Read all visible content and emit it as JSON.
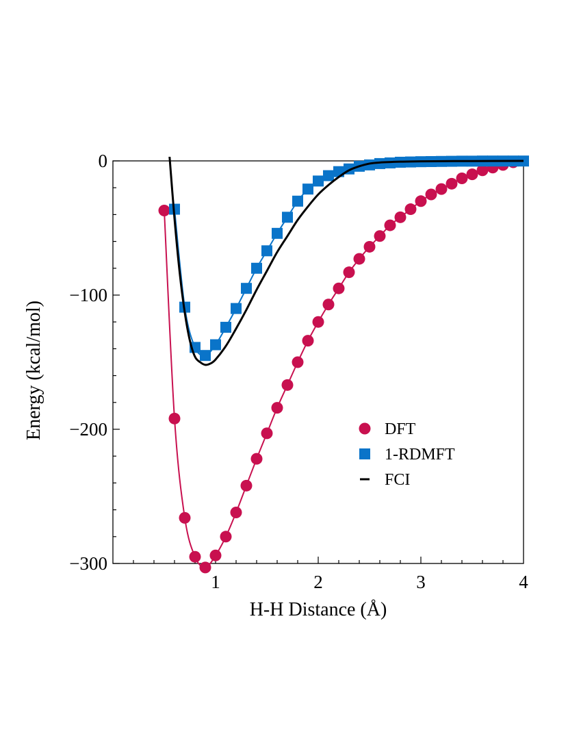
{
  "chart_data": {
    "type": "line",
    "title": "",
    "xlabel": "H-H Distance (Å)",
    "ylabel": "Energy (kcal/mol)",
    "xlim": [
      0,
      4
    ],
    "ylim": [
      -300,
      0
    ],
    "x_ticks": [
      1,
      2,
      3,
      4
    ],
    "y_ticks": [
      0,
      -100,
      -200,
      -300
    ],
    "x_tick_labels": [
      "1",
      "2",
      "3",
      "4"
    ],
    "y_tick_labels": [
      "0",
      "-100",
      "-200",
      "-300"
    ],
    "legend_position": "center-right",
    "series": [
      {
        "name": "DFT",
        "style": "markers+line",
        "marker": "circle",
        "color": "#c8104f",
        "x": [
          0.5,
          0.6,
          0.7,
          0.8,
          0.9,
          1.0,
          1.1,
          1.2,
          1.3,
          1.4,
          1.5,
          1.6,
          1.7,
          1.8,
          1.9,
          2.0,
          2.1,
          2.2,
          2.3,
          2.4,
          2.5,
          2.6,
          2.7,
          2.8,
          2.9,
          3.0,
          3.1,
          3.2,
          3.3,
          3.4,
          3.5,
          3.6,
          3.7,
          3.8,
          3.9
        ],
        "y": [
          -37,
          -192,
          -266,
          -295,
          -303,
          -294,
          -280,
          -262,
          -242,
          -222,
          -203,
          -184,
          -167,
          -150,
          -134,
          -120,
          -107,
          -95,
          -83,
          -73,
          -64,
          -56,
          -48,
          -42,
          -36,
          -30,
          -25,
          -21,
          -17,
          -13,
          -10,
          -7,
          -5,
          -3,
          -1
        ]
      },
      {
        "name": "1-RDMFT",
        "style": "markers+line",
        "marker": "square",
        "color": "#0a74c9",
        "x": [
          0.6,
          0.7,
          0.8,
          0.9,
          1.0,
          1.1,
          1.2,
          1.3,
          1.4,
          1.5,
          1.6,
          1.7,
          1.8,
          1.9,
          2.0,
          2.1,
          2.2,
          2.3,
          2.4,
          2.5,
          2.6,
          2.7,
          2.8,
          2.9,
          3.0,
          3.1,
          3.2,
          3.3,
          3.4,
          3.5,
          3.6,
          3.7,
          3.8,
          3.9,
          4.0
        ],
        "y": [
          -36,
          -109,
          -139,
          -145,
          -137,
          -124,
          -110,
          -95,
          -80,
          -67,
          -54,
          -42,
          -30,
          -21,
          -15,
          -11,
          -8,
          -6,
          -4,
          -3,
          -2,
          -1.5,
          -1,
          -0.8,
          -0.6,
          -0.5,
          -0.4,
          -0.3,
          -0.2,
          -0.2,
          -0.1,
          -0.1,
          -0.1,
          -0.1,
          -0.1
        ]
      },
      {
        "name": "FCI",
        "style": "line",
        "color": "#000000",
        "x": [
          0.55,
          0.6,
          0.65,
          0.7,
          0.75,
          0.8,
          0.85,
          0.9,
          0.95,
          1.0,
          1.1,
          1.2,
          1.3,
          1.4,
          1.5,
          1.6,
          1.7,
          1.8,
          1.9,
          2.0,
          2.1,
          2.2,
          2.3,
          2.4,
          2.5,
          2.6,
          2.8,
          3.0,
          3.5,
          4.0
        ],
        "y": [
          5,
          -43,
          -83,
          -113,
          -134,
          -146,
          -150,
          -152,
          -151,
          -148,
          -138,
          -125,
          -111,
          -96,
          -82,
          -68,
          -56,
          -44,
          -34,
          -25,
          -18,
          -12,
          -7,
          -4,
          -2,
          -1.2,
          -0.6,
          -0.3,
          -0.1,
          0
        ]
      }
    ]
  }
}
